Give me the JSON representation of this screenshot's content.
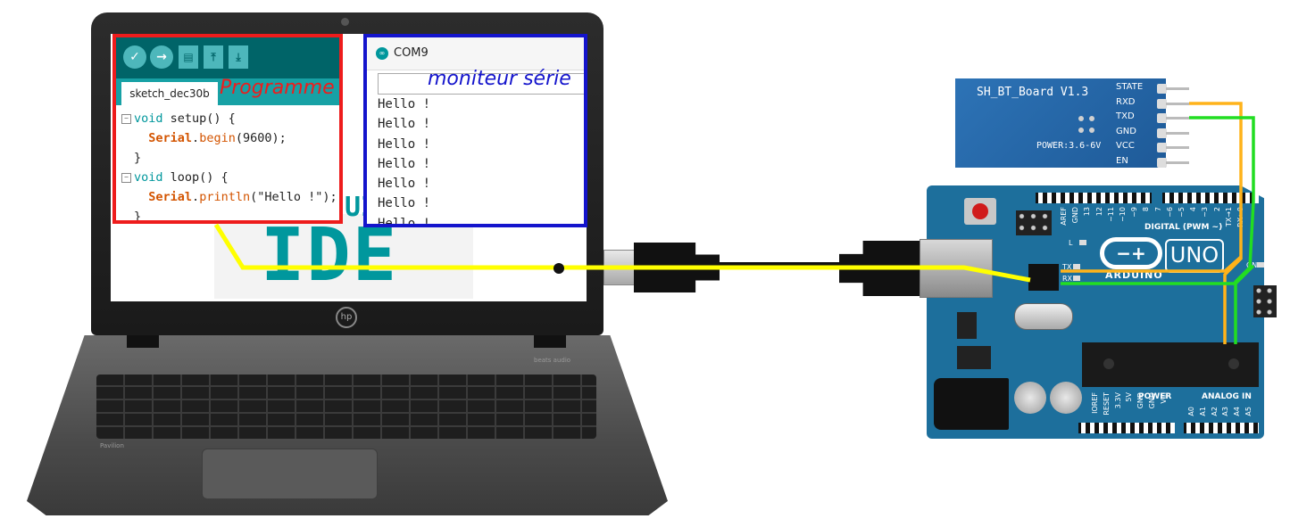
{
  "laptop": {
    "brand": "hp",
    "model_label": "Pavilion",
    "audio_label": "beats audio"
  },
  "ide_splash": {
    "text": "IDE",
    "partial_text": "UI"
  },
  "program_panel": {
    "label": "Programme",
    "tab_name": "sketch_dec30b",
    "toolbar": [
      "✓",
      "→",
      "▤",
      "⤒",
      "⤓"
    ],
    "code": [
      {
        "fold": true,
        "parts": [
          {
            "t": "void",
            "c": "kw"
          },
          {
            "t": " setup() {",
            "c": ""
          }
        ]
      },
      {
        "fold": false,
        "parts": [
          {
            "t": "  ",
            "c": ""
          },
          {
            "t": "Serial",
            "c": "obj"
          },
          {
            "t": ".",
            "c": ""
          },
          {
            "t": "begin",
            "c": "fn"
          },
          {
            "t": "(9600);",
            "c": ""
          }
        ]
      },
      {
        "fold": false,
        "parts": [
          {
            "t": "}",
            "c": ""
          }
        ]
      },
      {
        "fold": true,
        "parts": [
          {
            "t": "void",
            "c": "kw"
          },
          {
            "t": " loop() {",
            "c": ""
          }
        ]
      },
      {
        "fold": false,
        "parts": [
          {
            "t": "  ",
            "c": ""
          },
          {
            "t": "Serial",
            "c": "obj"
          },
          {
            "t": ".",
            "c": ""
          },
          {
            "t": "println",
            "c": "fn"
          },
          {
            "t": "(\"Hello !\");",
            "c": ""
          }
        ]
      },
      {
        "fold": false,
        "parts": [
          {
            "t": "}",
            "c": ""
          }
        ]
      }
    ],
    "border_color": "#ee1c1c"
  },
  "serial_panel": {
    "label": "moniteur série",
    "window_title": "COM9",
    "output_lines": [
      "Hello !",
      "Hello !",
      "Hello !",
      "Hello !",
      "Hello !",
      "Hello !",
      "Hello !"
    ],
    "border_color": "#1414cc"
  },
  "arduino": {
    "brand": "ARDUINO",
    "model": "UNO",
    "digital_label": "DIGITAL (PWM ~)",
    "power_label": "POWER",
    "analog_label": "ANALOG IN",
    "digital_pins": [
      "AREF",
      "GND",
      "13",
      "12",
      "~11",
      "~10",
      "~9",
      "8",
      "7",
      "~6",
      "~5",
      "4",
      "~3",
      "2",
      "TX→1",
      "RX←0"
    ],
    "power_pins": [
      "IOREF",
      "RESET",
      "3.3V",
      "5V",
      "GND",
      "GND",
      "Vin"
    ],
    "analog_pins": [
      "A0",
      "A1",
      "A2",
      "A3",
      "A4",
      "A5"
    ],
    "leds": [
      "L",
      "TX",
      "RX",
      "ON"
    ],
    "logo_symbol": "−+"
  },
  "bluetooth": {
    "name": "SH_BT_Board V1.3",
    "power": "POWER:3.6-6V",
    "pins": [
      "STATE",
      "RXD",
      "TXD",
      "GND",
      "VCC",
      "EN"
    ]
  },
  "wires": {
    "usb_wire_color": "#ffff00",
    "rx_wire_color": "#ffb31a",
    "tx_wire_color": "#22dd22"
  }
}
